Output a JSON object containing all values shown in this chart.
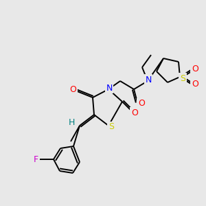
{
  "bg_color": "#e8e8e8",
  "bond_color": "#000000",
  "atom_colors": {
    "N": "#0000ff",
    "O": "#ff0000",
    "S": "#cccc00",
    "F": "#cc00cc",
    "H": "#008080",
    "C": "#000000"
  },
  "figsize": [
    3.0,
    3.0
  ],
  "dpi": 100,
  "lw": 1.4
}
